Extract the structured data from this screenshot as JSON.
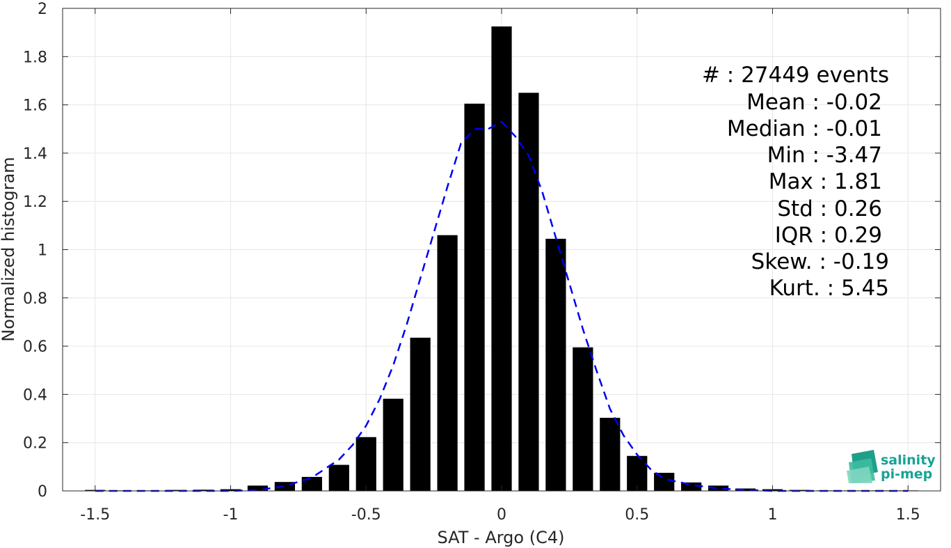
{
  "chart_data": {
    "type": "bar",
    "xlabel": "SAT - Argo (C4)",
    "ylabel": "Normalized histogram",
    "xlim": [
      -1.62,
      1.62
    ],
    "ylim": [
      0,
      2
    ],
    "xticks": [
      -1.5,
      -1,
      -0.5,
      0,
      0.5,
      1,
      1.5
    ],
    "xtick_labels": [
      "-1.5",
      "-1",
      "-0.5",
      "0",
      "0.5",
      "1",
      "1.5"
    ],
    "yticks": [
      0,
      0.2,
      0.4,
      0.6,
      0.8,
      1,
      1.2,
      1.4,
      1.6,
      1.8,
      2
    ],
    "ytick_labels": [
      "0",
      "0.2",
      "0.4",
      "0.6",
      "0.8",
      "1",
      "1.2",
      "1.4",
      "1.6",
      "1.8",
      "2"
    ],
    "grid": true,
    "bar_width": 0.075,
    "bar_color": "#000000",
    "bars": {
      "x": [
        -1.5,
        -1.4,
        -1.3,
        -1.2,
        -1.1,
        -1.0,
        -0.9,
        -0.8,
        -0.7,
        -0.6,
        -0.5,
        -0.4,
        -0.3,
        -0.2,
        -0.1,
        0.0,
        0.1,
        0.2,
        0.3,
        0.4,
        0.5,
        0.6,
        0.7,
        0.8,
        0.9,
        1.0,
        1.1,
        1.2,
        1.3,
        1.4,
        1.5
      ],
      "values": [
        0.004,
        0.002,
        0.002,
        0.004,
        0.005,
        0.007,
        0.022,
        0.037,
        0.058,
        0.108,
        0.223,
        0.382,
        0.635,
        1.06,
        1.605,
        1.925,
        1.65,
        1.045,
        0.595,
        0.303,
        0.145,
        0.075,
        0.035,
        0.022,
        0.01,
        0.007,
        0.004,
        0.002,
        0.002,
        0.002,
        0.002
      ]
    },
    "fit": {
      "style": "dashed",
      "color": "#0000ee",
      "x": [
        -1.5,
        -1.4,
        -1.3,
        -1.2,
        -1.1,
        -1.0,
        -0.9,
        -0.8,
        -0.7,
        -0.6,
        -0.55,
        -0.5,
        -0.45,
        -0.4,
        -0.35,
        -0.3,
        -0.25,
        -0.2,
        -0.15,
        -0.1,
        -0.05,
        0.0,
        0.05,
        0.1,
        0.15,
        0.2,
        0.25,
        0.3,
        0.35,
        0.4,
        0.45,
        0.5,
        0.55,
        0.6,
        0.7,
        0.8,
        0.9,
        1.0,
        1.1,
        1.2,
        1.3,
        1.4,
        1.5
      ],
      "y": [
        0.0,
        0.0,
        0.0,
        0.0,
        0.0,
        0.0,
        0.003,
        0.02,
        0.055,
        0.13,
        0.19,
        0.27,
        0.38,
        0.52,
        0.69,
        0.88,
        1.07,
        1.26,
        1.44,
        1.5,
        1.5,
        1.53,
        1.47,
        1.39,
        1.24,
        1.05,
        0.86,
        0.67,
        0.5,
        0.34,
        0.23,
        0.15,
        0.09,
        0.05,
        0.025,
        0.01,
        0.004,
        0.0,
        0.0,
        0.0,
        0.0,
        0.0,
        0.0
      ]
    }
  },
  "stats": {
    "count": "#  : 27449 events",
    "mean": "Mean : -0.02",
    "median": "Median : -0.01",
    "min": "Min : -3.47",
    "max": "Max : 1.81",
    "std": "Std : 0.26",
    "iqr": "IQR : 0.29",
    "skew": "Skew. : -0.19",
    "kurt": "Kurt. : 5.45"
  },
  "logo": {
    "line1": "salinity",
    "line2": "pi-mep",
    "color": "#16a394"
  }
}
